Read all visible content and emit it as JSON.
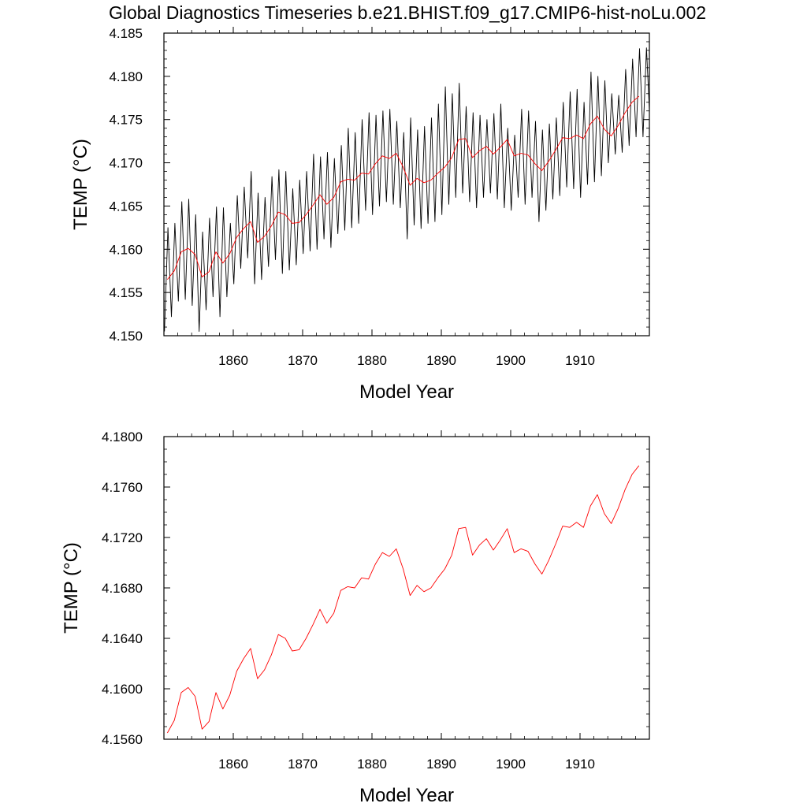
{
  "figure": {
    "title": "Global Diagnostics Timeseries b.e21.BHIST.f09_g17.CMIP6-hist-noLu.002"
  },
  "chart_data": [
    {
      "type": "line",
      "xlabel": "Model Year",
      "ylabel": "TEMP (°C)",
      "xlim": [
        1850,
        1920
      ],
      "ylim": [
        4.15,
        4.185
      ],
      "xticks": [
        "1860",
        "1870",
        "1880",
        "1890",
        "1900",
        "1910"
      ],
      "yticks": [
        "4.150",
        "4.155",
        "4.160",
        "4.165",
        "4.170",
        "4.175",
        "4.180",
        "4.185"
      ],
      "grid": false,
      "series": [
        {
          "color": "#000000",
          "description_values": "monthly",
          "annual_max": [
            4.1625,
            4.163,
            4.1655,
            4.1658,
            4.164,
            4.162,
            4.1636,
            4.1649,
            4.1648,
            4.163,
            4.1662,
            4.1672,
            4.169,
            4.1665,
            4.166,
            4.1684,
            4.1692,
            4.169,
            4.167,
            4.168,
            4.169,
            4.171,
            4.1707,
            4.1712,
            4.1705,
            4.172,
            4.174,
            4.1735,
            4.175,
            4.1758,
            4.1755,
            4.176,
            4.1762,
            4.1748,
            4.1735,
            4.1752,
            4.1738,
            4.1742,
            4.1752,
            4.1768,
            4.1788,
            4.178,
            4.1792,
            4.1765,
            4.1758,
            4.1755,
            4.175,
            4.1757,
            4.1768,
            4.174,
            4.1732,
            4.1762,
            4.176,
            4.1748,
            4.1738,
            4.1745,
            4.1752,
            4.177,
            4.1782,
            4.1785,
            4.177,
            4.1805,
            4.18,
            4.1795,
            4.178,
            4.1778,
            4.1808,
            4.182,
            4.1832,
            4.1833
          ],
          "annual_min": [
            4.1505,
            4.1522,
            4.154,
            4.1542,
            4.1535,
            4.1505,
            4.153,
            4.1545,
            4.1522,
            4.1545,
            4.156,
            4.1578,
            4.159,
            4.156,
            4.1565,
            4.158,
            4.1588,
            4.1572,
            4.1576,
            4.1582,
            4.1595,
            4.1598,
            4.16,
            4.1612,
            4.1602,
            4.1618,
            4.1622,
            4.1625,
            4.163,
            4.1645,
            4.164,
            4.165,
            4.1655,
            4.1652,
            4.1648,
            4.1612,
            4.1628,
            4.1624,
            4.163,
            4.1632,
            4.164,
            4.1652,
            4.166,
            4.1665,
            4.1655,
            4.1648,
            4.166,
            4.1665,
            4.1658,
            4.1648,
            4.1645,
            4.166,
            4.1652,
            4.166,
            4.1632,
            4.1645,
            4.1658,
            4.1662,
            4.1672,
            4.167,
            4.166,
            4.1675,
            4.1678,
            4.1685,
            4.17,
            4.171,
            4.1712,
            4.172,
            4.173,
            4.173
          ]
        },
        {
          "color": "#ff0000",
          "description_values": "annual mean",
          "x": [
            1850.5,
            1851.5,
            1852.5,
            1853.5,
            1854.5,
            1855.5,
            1856.5,
            1857.5,
            1858.5,
            1859.5,
            1860.5,
            1861.5,
            1862.5,
            1863.5,
            1864.5,
            1865.5,
            1866.5,
            1867.5,
            1868.5,
            1869.5,
            1870.5,
            1871.5,
            1872.5,
            1873.5,
            1874.5,
            1875.5,
            1876.5,
            1877.5,
            1878.5,
            1879.5,
            1880.5,
            1881.5,
            1882.5,
            1883.5,
            1884.5,
            1885.5,
            1886.5,
            1887.5,
            1888.5,
            1889.5,
            1890.5,
            1891.5,
            1892.5,
            1893.5,
            1894.5,
            1895.5,
            1896.5,
            1897.5,
            1898.5,
            1899.5,
            1900.5,
            1901.5,
            1902.5,
            1903.5,
            1904.5,
            1905.5,
            1906.5,
            1907.5,
            1908.5,
            1909.5,
            1910.5,
            1911.5,
            1912.5,
            1913.5,
            1914.5,
            1915.5,
            1916.5,
            1917.5,
            1918.5
          ],
          "y": [
            4.1565,
            4.1575,
            4.1597,
            4.1601,
            4.1594,
            4.1568,
            4.1574,
            4.1597,
            4.1584,
            4.1595,
            4.1614,
            4.1624,
            4.1632,
            4.1608,
            4.1615,
            4.1627,
            4.1643,
            4.164,
            4.163,
            4.1631,
            4.164,
            4.1651,
            4.1663,
            4.1652,
            4.166,
            4.1678,
            4.1681,
            4.168,
            4.1688,
            4.1687,
            4.1699,
            4.1708,
            4.1705,
            4.1711,
            4.1695,
            4.1674,
            4.1682,
            4.1677,
            4.168,
            4.1688,
            4.1695,
            4.1706,
            4.1727,
            4.1728,
            4.1706,
            4.1714,
            4.1719,
            4.171,
            4.1718,
            4.1727,
            4.1708,
            4.1711,
            4.1709,
            4.1699,
            4.1691,
            4.1702,
            4.1715,
            4.1729,
            4.1728,
            4.1732,
            4.1728,
            4.1745,
            4.1754,
            4.1739,
            4.1731,
            4.1743,
            4.1758,
            4.177,
            4.1777
          ]
        }
      ]
    },
    {
      "type": "line",
      "xlabel": "Model Year",
      "ylabel": "TEMP (°C)",
      "xlim": [
        1850,
        1920
      ],
      "ylim": [
        4.156,
        4.18
      ],
      "xticks": [
        "1860",
        "1870",
        "1880",
        "1890",
        "1900",
        "1910"
      ],
      "yticks": [
        "4.1560",
        "4.1600",
        "4.1640",
        "4.1680",
        "4.1720",
        "4.1760",
        "4.1800"
      ],
      "grid": false,
      "series": [
        {
          "color": "#ff0000",
          "x": [
            1850.5,
            1851.5,
            1852.5,
            1853.5,
            1854.5,
            1855.5,
            1856.5,
            1857.5,
            1858.5,
            1859.5,
            1860.5,
            1861.5,
            1862.5,
            1863.5,
            1864.5,
            1865.5,
            1866.5,
            1867.5,
            1868.5,
            1869.5,
            1870.5,
            1871.5,
            1872.5,
            1873.5,
            1874.5,
            1875.5,
            1876.5,
            1877.5,
            1878.5,
            1879.5,
            1880.5,
            1881.5,
            1882.5,
            1883.5,
            1884.5,
            1885.5,
            1886.5,
            1887.5,
            1888.5,
            1889.5,
            1890.5,
            1891.5,
            1892.5,
            1893.5,
            1894.5,
            1895.5,
            1896.5,
            1897.5,
            1898.5,
            1899.5,
            1900.5,
            1901.5,
            1902.5,
            1903.5,
            1904.5,
            1905.5,
            1906.5,
            1907.5,
            1908.5,
            1909.5,
            1910.5,
            1911.5,
            1912.5,
            1913.5,
            1914.5,
            1915.5,
            1916.5,
            1917.5,
            1918.5
          ],
          "y": [
            4.1565,
            4.1575,
            4.1597,
            4.1601,
            4.1594,
            4.1568,
            4.1574,
            4.1597,
            4.1584,
            4.1595,
            4.1614,
            4.1624,
            4.1632,
            4.1608,
            4.1615,
            4.1627,
            4.1643,
            4.164,
            4.163,
            4.1631,
            4.164,
            4.1651,
            4.1663,
            4.1652,
            4.166,
            4.1678,
            4.1681,
            4.168,
            4.1688,
            4.1687,
            4.1699,
            4.1708,
            4.1705,
            4.1711,
            4.1695,
            4.1674,
            4.1682,
            4.1677,
            4.168,
            4.1688,
            4.1695,
            4.1706,
            4.1727,
            4.1728,
            4.1706,
            4.1714,
            4.1719,
            4.171,
            4.1718,
            4.1727,
            4.1708,
            4.1711,
            4.1709,
            4.1699,
            4.1691,
            4.1702,
            4.1715,
            4.1729,
            4.1728,
            4.1732,
            4.1728,
            4.1745,
            4.1754,
            4.1739,
            4.1731,
            4.1743,
            4.1758,
            4.177,
            4.1777
          ]
        }
      ]
    }
  ]
}
